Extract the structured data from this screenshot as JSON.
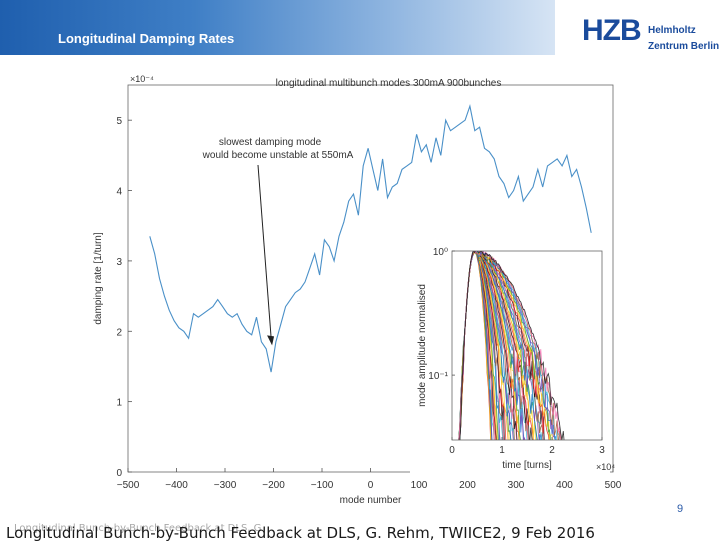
{
  "slide": {
    "header_title": "Longitudinal Damping Rates",
    "logo_mark": "HZB",
    "logo_line1": "Helmholtz",
    "logo_line2": "Zentrum Berlin",
    "page_number": "9",
    "footer": "Longitudinal Bunch-by-Bunch Feedback at DLS, G. Rehm, TWIICE2, 9 Feb 2016",
    "footer_ghost": "Longitudinal Bunch-by-Bunch Feedback at DLS, G"
  },
  "chart_data": [
    {
      "type": "line",
      "title": "longitudinal multibunch modes 300mA 900bunches",
      "xlabel": "mode number",
      "ylabel": "damping rate [1/turn]",
      "y_multiplier": "×10⁻⁴",
      "xlim": [
        -500,
        500
      ],
      "ylim": [
        0,
        5.5
      ],
      "xticks": [
        -500,
        -400,
        -300,
        -200,
        -100,
        0,
        100,
        200,
        300,
        400,
        500
      ],
      "yticks": [
        0,
        1,
        2,
        3,
        4,
        5
      ],
      "grid": false,
      "color": "#4a90c8",
      "annotation": {
        "text": [
          "slowest damping mode",
          "would become unstable at 550mA"
        ],
        "target": [
          -205,
          1.8
        ]
      },
      "x": [
        -455,
        -445,
        -435,
        -425,
        -415,
        -405,
        -395,
        -385,
        -375,
        -365,
        -355,
        -345,
        -335,
        -325,
        -315,
        -305,
        -295,
        -285,
        -275,
        -265,
        -255,
        -245,
        -235,
        -225,
        -215,
        -205,
        -195,
        -185,
        -175,
        -165,
        -155,
        -145,
        -135,
        -125,
        -115,
        -105,
        -95,
        -85,
        -75,
        -65,
        -55,
        -45,
        -35,
        -25,
        -15,
        -5,
        5,
        15,
        25,
        35,
        45,
        55,
        65,
        75,
        85,
        95,
        105,
        115,
        125,
        135,
        145,
        155,
        165,
        175,
        185,
        195,
        205,
        215,
        225,
        235,
        245,
        255,
        265,
        275,
        285,
        295,
        305,
        315,
        325,
        335,
        345,
        355,
        365,
        375,
        385,
        395,
        405,
        415,
        425,
        435,
        445,
        455
      ],
      "values": [
        3.35,
        3.1,
        2.75,
        2.5,
        2.3,
        2.15,
        2.05,
        2.0,
        1.9,
        2.25,
        2.2,
        2.25,
        2.3,
        2.35,
        2.45,
        2.35,
        2.25,
        2.2,
        2.25,
        2.1,
        2.0,
        1.95,
        2.2,
        1.85,
        1.75,
        1.42,
        1.85,
        2.1,
        2.35,
        2.45,
        2.55,
        2.6,
        2.7,
        2.9,
        3.1,
        2.8,
        3.3,
        3.2,
        3.0,
        3.35,
        3.55,
        3.85,
        3.95,
        3.65,
        4.35,
        4.6,
        4.3,
        4.0,
        4.45,
        3.9,
        4.05,
        4.1,
        4.3,
        4.35,
        4.4,
        4.8,
        4.55,
        4.65,
        4.4,
        4.75,
        4.5,
        5.0,
        4.85,
        4.9,
        4.95,
        5.0,
        5.2,
        4.85,
        4.9,
        4.6,
        4.55,
        4.45,
        4.2,
        4.1,
        3.9,
        4.0,
        4.2,
        3.85,
        3.95,
        4.05,
        4.3,
        4.05,
        4.35,
        4.4,
        4.45,
        4.35,
        4.5,
        4.2,
        4.3,
        4.05,
        3.75,
        3.4
      ]
    },
    {
      "type": "line",
      "xlabel": "time [turns]",
      "ylabel": "mode amplitude normalised",
      "x_multiplier": "×10⁴",
      "xlim": [
        0,
        3
      ],
      "ylim": [
        0.03,
        1.0
      ],
      "log_y": true,
      "xticks": [
        0,
        1,
        2,
        3
      ],
      "ytick_labels": [
        "10⁰",
        "10⁻¹"
      ],
      "ytick_values": [
        1.0,
        0.1
      ],
      "grid": false,
      "curve_family": {
        "count": 60,
        "rise_to_peak_at": 0.45,
        "decay_time_range": [
          0.25,
          1.4
        ],
        "colors": [
          "#e8231e",
          "#f5a623",
          "#f7d11e",
          "#2e9e3f",
          "#1f6fd0",
          "#7b3fb0",
          "#2bb5d6",
          "#a0522d",
          "#f36fb0",
          "#111111"
        ]
      }
    }
  ]
}
